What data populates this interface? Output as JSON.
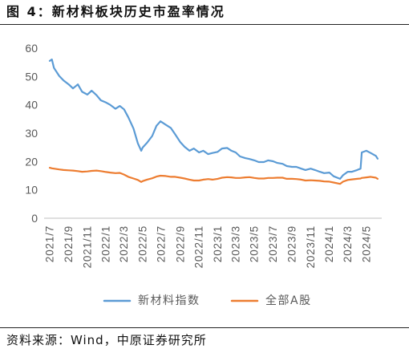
{
  "chart_data": {
    "type": "line",
    "title": "图 4：新材料板块历史市盈率情况",
    "source": "资料来源：Wind，中原证券研究所",
    "xlim": [
      "2021-07-01",
      "2024-06-15"
    ],
    "ylim": [
      0,
      60
    ],
    "y_ticks": [
      0,
      10,
      20,
      30,
      40,
      50,
      60
    ],
    "x_tick_labels": [
      "2021/7",
      "2021/9",
      "2021/11",
      "2022/1",
      "2022/3",
      "2022/5",
      "2022/7",
      "2022/9",
      "2022/11",
      "2023/1",
      "2023/3",
      "2023/5",
      "2023/7",
      "2023/9",
      "2023/11",
      "2024/1",
      "2024/3",
      "2024/5"
    ],
    "grid": false,
    "legend": {
      "position": "bottom"
    },
    "x": [
      "2021-07-01",
      "2021-07-08",
      "2021-07-15",
      "2021-08-01",
      "2021-08-15",
      "2021-09-01",
      "2021-09-15",
      "2021-10-01",
      "2021-10-15",
      "2021-11-01",
      "2021-11-15",
      "2021-12-01",
      "2021-12-15",
      "2022-01-01",
      "2022-01-15",
      "2022-02-01",
      "2022-02-15",
      "2022-03-01",
      "2022-03-15",
      "2022-04-01",
      "2022-04-15",
      "2022-04-26",
      "2022-05-01",
      "2022-05-15",
      "2022-06-01",
      "2022-06-15",
      "2022-06-28",
      "2022-07-15",
      "2022-08-01",
      "2022-08-15",
      "2022-09-01",
      "2022-09-15",
      "2022-10-01",
      "2022-10-15",
      "2022-11-01",
      "2022-11-15",
      "2022-12-01",
      "2022-12-15",
      "2023-01-01",
      "2023-01-15",
      "2023-02-01",
      "2023-02-15",
      "2023-03-01",
      "2023-03-15",
      "2023-04-01",
      "2023-04-15",
      "2023-05-01",
      "2023-05-15",
      "2023-06-01",
      "2023-06-15",
      "2023-07-01",
      "2023-07-15",
      "2023-08-01",
      "2023-08-15",
      "2023-09-01",
      "2023-09-15",
      "2023-10-01",
      "2023-10-15",
      "2023-11-01",
      "2023-11-15",
      "2023-12-01",
      "2023-12-15",
      "2024-01-01",
      "2024-01-15",
      "2024-02-05",
      "2024-02-15",
      "2024-03-01",
      "2024-03-15",
      "2024-04-01",
      "2024-04-12",
      "2024-04-16",
      "2024-05-01",
      "2024-05-15",
      "2024-06-01",
      "2024-06-07"
    ],
    "series": [
      {
        "name": "新材料指数",
        "color": "#5B9BD5",
        "values": [
          55.5,
          56.0,
          53.0,
          50.2,
          48.6,
          47.2,
          45.8,
          47.2,
          44.6,
          43.6,
          45.0,
          43.4,
          41.6,
          40.8,
          40.0,
          38.6,
          39.6,
          38.4,
          35.6,
          31.6,
          26.4,
          23.8,
          25.0,
          26.6,
          29.0,
          32.6,
          34.2,
          33.0,
          31.8,
          29.6,
          26.8,
          25.2,
          23.8,
          24.6,
          23.2,
          23.8,
          22.6,
          23.0,
          23.4,
          24.6,
          24.8,
          23.8,
          23.2,
          21.8,
          21.2,
          20.9,
          20.4,
          19.8,
          19.8,
          20.4,
          20.1,
          19.5,
          19.2,
          18.4,
          18.1,
          18.1,
          17.5,
          17.0,
          17.5,
          17.0,
          16.4,
          15.9,
          16.1,
          14.8,
          13.9,
          15.2,
          16.4,
          16.4,
          17.0,
          17.5,
          23.2,
          23.8,
          23.0,
          22.0,
          21.0
        ]
      },
      {
        "name": "全部A股",
        "color": "#ED7D31",
        "values": [
          17.8,
          17.6,
          17.5,
          17.2,
          17.0,
          16.9,
          16.8,
          16.6,
          16.4,
          16.5,
          16.7,
          16.8,
          16.6,
          16.3,
          16.1,
          15.9,
          16.0,
          15.4,
          14.6,
          14.0,
          13.5,
          12.8,
          13.1,
          13.6,
          14.1,
          14.7,
          15.0,
          14.9,
          14.6,
          14.6,
          14.3,
          14.0,
          13.6,
          13.3,
          13.3,
          13.6,
          13.8,
          13.6,
          13.9,
          14.3,
          14.5,
          14.4,
          14.2,
          14.2,
          14.4,
          14.5,
          14.2,
          14.0,
          14.0,
          14.2,
          14.2,
          14.3,
          14.3,
          13.9,
          13.9,
          13.8,
          13.6,
          13.3,
          13.4,
          13.3,
          13.2,
          13.0,
          12.9,
          12.6,
          12.1,
          12.9,
          13.5,
          13.7,
          13.9,
          14.0,
          14.2,
          14.4,
          14.6,
          14.3,
          13.9
        ]
      }
    ]
  }
}
